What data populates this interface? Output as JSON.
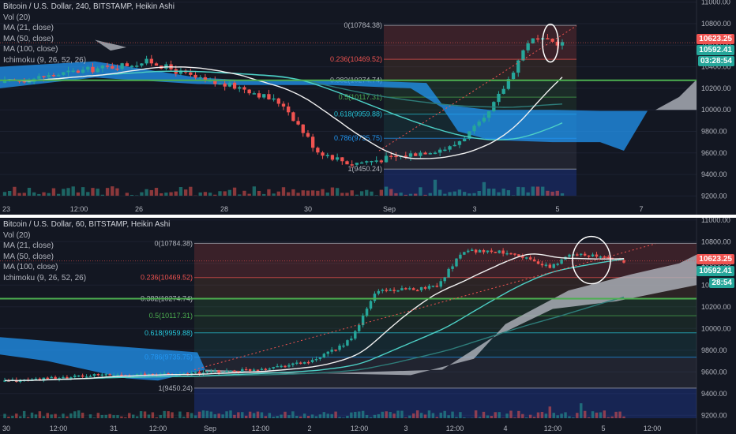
{
  "top": {
    "title": "Bitcoin / U.S. Dollar, 240, BITSTAMP, Heikin Ashi",
    "legend": [
      "Vol (20)",
      "MA (21, close)",
      "MA (50, close)",
      "MA (100, close)",
      "Ichimoku (9, 26, 52, 26)"
    ],
    "price_axis": [
      "11000.00",
      "10800.00",
      "10600.00",
      "10400.00",
      "10200.00",
      "10000.00",
      "9800.00",
      "9600.00",
      "9400.00",
      "9200.00"
    ],
    "price_range": [
      9100,
      11020
    ],
    "time_axis": [
      "23",
      "12:00",
      "26",
      "28",
      "30",
      "Sep",
      "3",
      "5",
      "7"
    ],
    "badges": {
      "price1": "10623.25",
      "price2": "10592.41",
      "timer": "03:28:54"
    },
    "fib": [
      {
        "label": "0(10784.38)",
        "value": 10784.38,
        "color": "#b2b5be"
      },
      {
        "label": "0.236(10469.52)",
        "value": 10469.52,
        "color": "#ef5350"
      },
      {
        "label": "0.382(10274.74)",
        "value": 10274.74,
        "color": "#b2b5be"
      },
      {
        "label": "0.5(10117.31)",
        "value": 10117.31,
        "color": "#4caf50"
      },
      {
        "label": "0.618(9959.88)",
        "value": 9959.88,
        "color": "#26c6da"
      },
      {
        "label": "0.786(9735.75)",
        "value": 9735.75,
        "color": "#2196f3"
      },
      {
        "label": "1(9450.24)",
        "value": 9450.24,
        "color": "#b2b5be"
      }
    ]
  },
  "bottom": {
    "title": "Bitcoin / U.S. Dollar, 60, BITSTAMP, Heikin Ashi",
    "legend": [
      "Vol (20)",
      "MA (21, close)",
      "MA (50, close)",
      "MA (100, close)",
      "Ichimoku (9, 26, 52, 26)"
    ],
    "price_axis": [
      "11000.00",
      "10800.00",
      "10600.00",
      "10400.00",
      "10200.00",
      "10000.00",
      "9800.00",
      "9600.00",
      "9400.00",
      "9200.00"
    ],
    "price_range": [
      9100,
      11020
    ],
    "time_axis": [
      "30",
      "12:00",
      "31",
      "12:00",
      "Sep",
      "12:00",
      "2",
      "12:00",
      "3",
      "12:00",
      "4",
      "12:00",
      "5",
      "12:00"
    ],
    "badges": {
      "price1": "10623.25",
      "price2": "10592.41",
      "timer": "28:54"
    },
    "fib": [
      {
        "label": "0(10784.38)",
        "value": 10784.38,
        "color": "#b2b5be"
      },
      {
        "label": "0.236(10469.52)",
        "value": 10469.52,
        "color": "#ef5350"
      },
      {
        "label": "0.382(10274.74)",
        "value": 10274.74,
        "color": "#b2b5be"
      },
      {
        "label": "0.5(10117.31)",
        "value": 10117.31,
        "color": "#4caf50"
      },
      {
        "label": "0.618(9959.88)",
        "value": 9959.88,
        "color": "#26c6da"
      },
      {
        "label": "0.786(9735.75)",
        "value": 9735.75,
        "color": "#2196f3"
      },
      {
        "label": "1(9450.24)",
        "value": 9450.24,
        "color": "#b2b5be"
      }
    ]
  },
  "colors": {
    "bg": "#131722",
    "up": "#26a69a",
    "down": "#ef5350",
    "green_line": "#4caf50",
    "badge_red": "#ef5350",
    "badge_green": "#26a69a"
  }
}
